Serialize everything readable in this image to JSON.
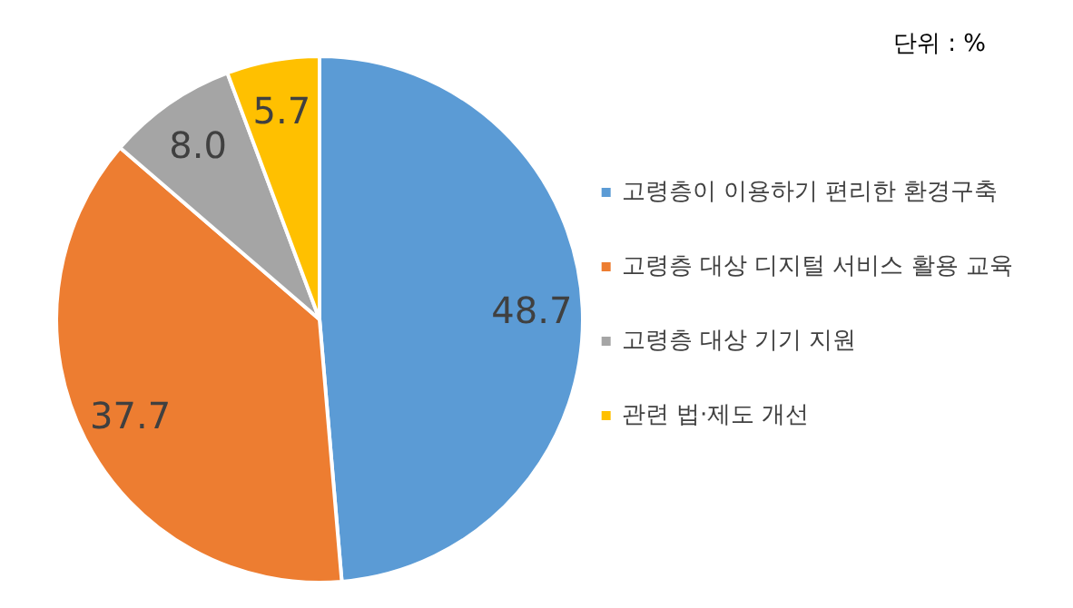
{
  "chart_data": {
    "type": "pie",
    "categories": [
      "고령층이 이용하기 편리한 환경구축",
      "고령층 대상 디지털 서비스 활용 교육",
      "고령층 대상 기기 지원",
      "관련 법·제도 개선"
    ],
    "values": [
      48.7,
      37.7,
      8.0,
      5.7
    ],
    "value_labels": [
      "48.7",
      "37.7",
      "8.0",
      "5.7"
    ],
    "colors": [
      "#5b9bd5",
      "#ed7d31",
      "#a5a5a5",
      "#ffc000"
    ],
    "legend": "right",
    "annotations": [
      "단위 : %"
    ]
  }
}
